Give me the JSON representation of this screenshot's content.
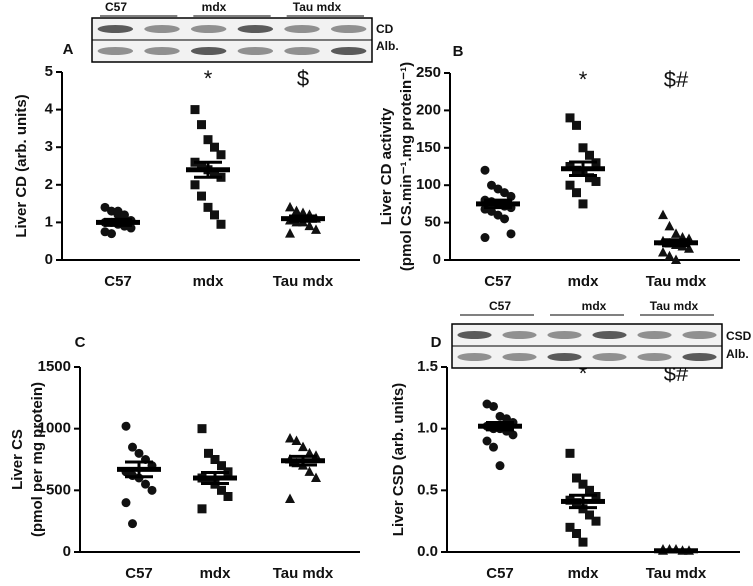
{
  "chart_data": [
    {
      "type": "dot",
      "label": "A",
      "ylabel": [
        "Liver CD (arb. units)"
      ],
      "categories": [
        "C57",
        "mdx",
        "Tau mdx"
      ],
      "ylim": [
        0,
        5
      ],
      "yticks": [
        0,
        1,
        2,
        3,
        4,
        5
      ],
      "annotations": [
        null,
        "*",
        "$"
      ],
      "blot": {
        "lanes": [
          "C57",
          "mdx",
          "Tau mdx"
        ],
        "rows": [
          "CD",
          "Alb."
        ]
      },
      "groups": [
        {
          "marker": "circle",
          "values": [
            1.4,
            1.3,
            1.2,
            1.1,
            1.05,
            1.0,
            1.0,
            0.95,
            0.9,
            0.85,
            0.75,
            0.7,
            1.3,
            1.2
          ],
          "mean": 1.0,
          "sem": 0.08
        },
        {
          "marker": "square",
          "values": [
            4.0,
            3.6,
            3.2,
            3.0,
            2.8,
            2.6,
            2.5,
            2.4,
            2.3,
            2.2,
            2.0,
            1.7,
            1.4,
            1.2,
            0.95
          ],
          "mean": 2.4,
          "sem": 0.2
        },
        {
          "marker": "triangle",
          "values": [
            1.4,
            1.3,
            1.25,
            1.2,
            1.1,
            1.05,
            1.0,
            1.0,
            0.9,
            0.8,
            0.7
          ],
          "mean": 1.1,
          "sem": 0.07
        }
      ]
    },
    {
      "type": "dot",
      "label": "B",
      "ylabel": [
        "Liver CD activity",
        "(pmol CS.min⁻¹.mg protein⁻¹)"
      ],
      "categories": [
        "C57",
        "mdx",
        "Tau mdx"
      ],
      "ylim": [
        0,
        250
      ],
      "yticks": [
        0,
        50,
        100,
        150,
        200,
        250
      ],
      "annotations": [
        null,
        "*",
        "$#"
      ],
      "groups": [
        {
          "marker": "circle",
          "values": [
            120,
            100,
            95,
            90,
            85,
            80,
            78,
            75,
            72,
            70,
            68,
            65,
            60,
            55,
            35,
            30
          ],
          "mean": 75,
          "sem": 5
        },
        {
          "marker": "square",
          "values": [
            190,
            180,
            150,
            140,
            130,
            125,
            120,
            118,
            110,
            105,
            100,
            90,
            75
          ],
          "mean": 122,
          "sem": 9
        },
        {
          "marker": "triangle",
          "values": [
            60,
            45,
            35,
            30,
            28,
            25,
            22,
            20,
            18,
            15,
            10,
            5,
            0
          ],
          "mean": 23,
          "sem": 4
        }
      ]
    },
    {
      "type": "dot",
      "label": "C",
      "ylabel": [
        "Liver CS",
        "(pmol per mg protein)"
      ],
      "categories": [
        "C57",
        "mdx",
        "Tau mdx"
      ],
      "ylim": [
        0,
        1500
      ],
      "yticks": [
        0,
        500,
        1000,
        1500
      ],
      "groups": [
        {
          "marker": "circle",
          "values": [
            1020,
            850,
            800,
            750,
            700,
            650,
            620,
            600,
            550,
            500,
            400,
            230
          ],
          "mean": 670,
          "sem": 60
        },
        {
          "marker": "square",
          "values": [
            1000,
            800,
            750,
            700,
            650,
            600,
            580,
            550,
            500,
            450,
            350
          ],
          "mean": 600,
          "sem": 45
        },
        {
          "marker": "triangle",
          "values": [
            920,
            900,
            850,
            800,
            780,
            750,
            720,
            700,
            650,
            600,
            430
          ],
          "mean": 740,
          "sem": 35
        }
      ]
    },
    {
      "type": "dot",
      "label": "D",
      "ylabel": [
        "Liver CSD (arb. units)"
      ],
      "categories": [
        "C57",
        "mdx",
        "Tau mdx"
      ],
      "ylim": [
        0,
        1.5
      ],
      "yticks": [
        {
          "value": 0,
          "label": "0.0"
        },
        0.5,
        {
          "value": 1,
          "label": "1.0"
        },
        1.5
      ],
      "annotations": [
        null,
        "*",
        "$#"
      ],
      "blot": {
        "lanes": [
          "C57",
          "mdx",
          "Tau mdx"
        ],
        "rows": [
          "CSD",
          "Alb."
        ]
      },
      "groups": [
        {
          "marker": "circle",
          "values": [
            1.2,
            1.18,
            1.1,
            1.08,
            1.05,
            1.02,
            1.0,
            1.0,
            0.98,
            0.95,
            0.9,
            0.85,
            0.7
          ],
          "mean": 1.02,
          "sem": 0.03
        },
        {
          "marker": "square",
          "values": [
            0.8,
            0.6,
            0.55,
            0.5,
            0.45,
            0.42,
            0.4,
            0.35,
            0.3,
            0.25,
            0.2,
            0.15,
            0.08
          ],
          "mean": 0.41,
          "sem": 0.05
        },
        {
          "marker": "triangle",
          "values": [
            0.02,
            0.02,
            0.02,
            0.01,
            0.01,
            0.01
          ],
          "mean": 0.01,
          "sem": 0.002
        }
      ]
    }
  ]
}
